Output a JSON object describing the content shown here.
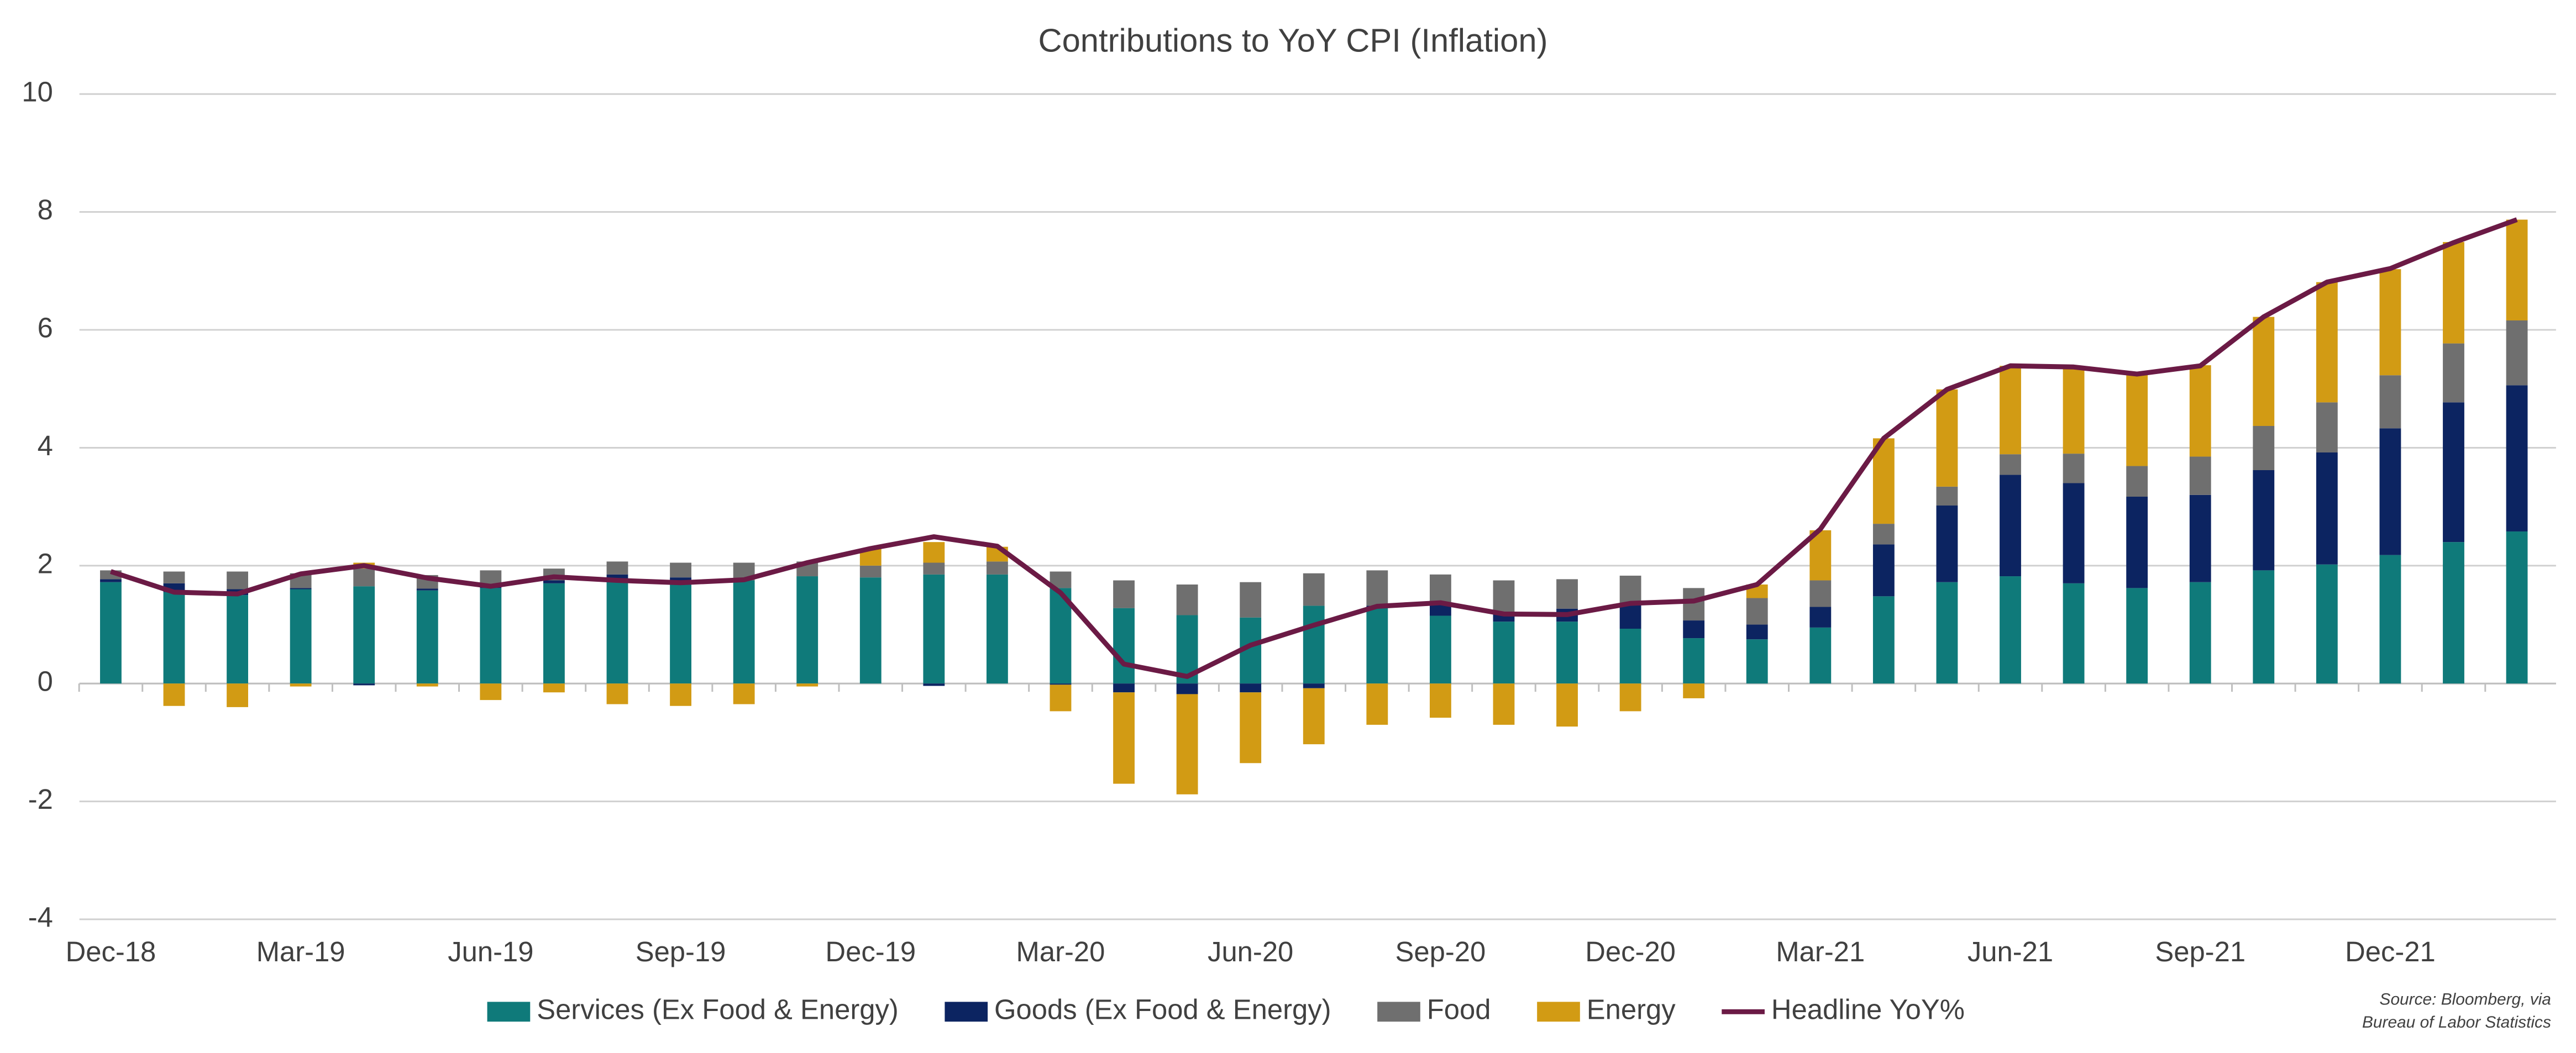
{
  "chart_data": {
    "type": "stacked-bar-line",
    "title": "Contributions to YoY CPI (Inflation)",
    "categories": [
      "Dec-18",
      null,
      null,
      "Mar-19",
      null,
      null,
      "Jun-19",
      null,
      null,
      "Sep-19",
      null,
      null,
      "Dec-19",
      null,
      null,
      "Mar-20",
      null,
      null,
      "Jun-20",
      null,
      null,
      "Sep-20",
      null,
      null,
      "Dec-20",
      null,
      null,
      "Mar-21",
      null,
      null,
      "Jun-21",
      null,
      null,
      "Sep-21",
      null,
      null,
      "Dec-21",
      null,
      null
    ],
    "series": [
      {
        "name": "Services (Ex Food & Energy)",
        "color": "#0f7a7a",
        "kind": "bar",
        "values": [
          1.72,
          1.55,
          1.5,
          1.6,
          1.65,
          1.58,
          1.62,
          1.7,
          1.75,
          1.7,
          1.75,
          1.82,
          1.8,
          1.85,
          1.85,
          1.62,
          1.28,
          1.16,
          1.12,
          1.32,
          1.3,
          1.15,
          1.05,
          1.05,
          0.93,
          0.77,
          0.75,
          0.95,
          1.48,
          1.72,
          1.82,
          1.7,
          1.62,
          1.72,
          1.92,
          2.02,
          2.18,
          2.4,
          2.58
        ]
      },
      {
        "name": "Goods (Ex Food & Energy)",
        "color": "#0c2461",
        "kind": "bar",
        "values": [
          0.05,
          0.15,
          0.1,
          0.02,
          -0.03,
          0.03,
          0.02,
          0.05,
          0.1,
          0.1,
          0.0,
          0.0,
          0.0,
          -0.04,
          0.0,
          -0.02,
          -0.15,
          -0.18,
          -0.15,
          -0.08,
          0.02,
          0.18,
          0.15,
          0.22,
          0.4,
          0.3,
          0.25,
          0.35,
          0.88,
          1.3,
          1.72,
          1.7,
          1.55,
          1.48,
          1.7,
          1.9,
          2.15,
          2.37,
          2.48
        ]
      },
      {
        "name": "Food",
        "color": "#6f6f6f",
        "kind": "bar",
        "values": [
          0.15,
          0.2,
          0.3,
          0.25,
          0.3,
          0.23,
          0.28,
          0.2,
          0.22,
          0.25,
          0.3,
          0.25,
          0.2,
          0.2,
          0.22,
          0.28,
          0.47,
          0.52,
          0.6,
          0.55,
          0.6,
          0.52,
          0.55,
          0.5,
          0.5,
          0.55,
          0.45,
          0.45,
          0.35,
          0.32,
          0.35,
          0.5,
          0.52,
          0.65,
          0.75,
          0.85,
          0.9,
          1.0,
          1.1
        ]
      },
      {
        "name": "Energy",
        "color": "#d29b14",
        "kind": "bar",
        "values": [
          0.0,
          -0.38,
          -0.4,
          -0.05,
          0.1,
          -0.05,
          -0.28,
          -0.15,
          -0.35,
          -0.38,
          -0.35,
          -0.05,
          0.29,
          0.35,
          0.25,
          -0.45,
          -1.55,
          -1.7,
          -1.2,
          -0.95,
          -0.7,
          -0.58,
          -0.7,
          -0.73,
          -0.47,
          -0.25,
          0.23,
          0.85,
          1.45,
          1.65,
          1.5,
          1.47,
          1.55,
          1.55,
          1.85,
          2.04,
          1.8,
          1.72,
          1.71
        ]
      },
      {
        "name": "Headline YoY%",
        "color": "#6b1a45",
        "kind": "line",
        "values": [
          1.9,
          1.55,
          1.52,
          1.86,
          2.0,
          1.79,
          1.65,
          1.81,
          1.75,
          1.71,
          1.76,
          2.05,
          2.29,
          2.49,
          2.33,
          1.54,
          0.33,
          0.12,
          0.65,
          0.99,
          1.31,
          1.37,
          1.18,
          1.17,
          1.36,
          1.4,
          1.68,
          2.62,
          4.16,
          4.99,
          5.39,
          5.37,
          5.25,
          5.39,
          6.22,
          6.81,
          7.04,
          7.48,
          7.87
        ]
      }
    ],
    "ylim": [
      -4,
      10
    ],
    "yticks": [
      -4,
      -2,
      0,
      2,
      4,
      6,
      8,
      10
    ],
    "grid": true,
    "legend": "bottom",
    "source": [
      "Source: Bloomberg, via",
      "Bureau of Labor Statistics"
    ]
  }
}
